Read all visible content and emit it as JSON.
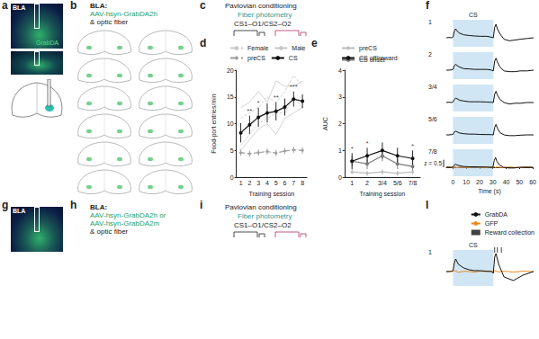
{
  "figure": {
    "a": {
      "letter": "a",
      "image_labels": [
        "BLA",
        "GrabDA"
      ]
    },
    "b": {
      "letter": "b",
      "lines": [
        "BLA:",
        "AAV-hsyn-GrabDA2h",
        "& optic fiber"
      ]
    },
    "c": {
      "letter": "c",
      "lines": [
        "Pavlovian conditioning",
        "Fiber photometry",
        "CS1–O1/CS2–O2"
      ]
    },
    "g": {
      "letter": "g",
      "image_labels": [
        "BLA"
      ]
    },
    "h": {
      "letter": "h",
      "lines": [
        "BLA:",
        "AAV-hsyn-GrabDA2h or",
        "AAV-hsyn-GrabDA2m",
        "& optic fiber"
      ]
    },
    "i": {
      "letter": "i",
      "lines": [
        "Pavlovian conditioning",
        "Fiber photometry",
        "CS1–O1/CS2–O2"
      ]
    }
  },
  "chart_data": [
    {
      "type": "line",
      "title": "d",
      "xlabel": "Training session",
      "ylabel": "Food-port entries/min",
      "categories": [
        "1",
        "2",
        "3",
        "4",
        "5",
        "6",
        "7",
        "8"
      ],
      "ylim": [
        0,
        20
      ],
      "yticks": [
        0,
        5,
        10,
        15,
        20
      ],
      "grid": false,
      "series": [
        {
          "name": "Female",
          "color": "#c8c8c8",
          "marker": "none",
          "line_style": "dashed",
          "values": [
            6,
            8,
            10,
            11,
            12,
            12,
            15,
            13
          ]
        },
        {
          "name": "Female",
          "color": "#c8c8c8",
          "marker": "none",
          "line_style": "dashed",
          "values": [
            11,
            12,
            13,
            15,
            14,
            16,
            19,
            17
          ]
        },
        {
          "name": "Male",
          "color": "#c8c8c8",
          "marker": "none",
          "line_style": "solid",
          "values": [
            5,
            7,
            9,
            10,
            8,
            11,
            12,
            13
          ]
        },
        {
          "name": "Male",
          "color": "#c8c8c8",
          "marker": "none",
          "line_style": "solid",
          "values": [
            13,
            14,
            16,
            14,
            18,
            17,
            17,
            18
          ]
        },
        {
          "name": "preCS",
          "color": "#9e9e9e",
          "marker": "diamond",
          "line_style": "dashed",
          "values": [
            4.6,
            4.4,
            4.6,
            4.8,
            4.5,
            4.9,
            5.1,
            5.0
          ],
          "errors": [
            0.6,
            0.6,
            0.6,
            0.6,
            0.6,
            0.6,
            0.6,
            0.6
          ]
        },
        {
          "name": "CS",
          "color": "#111111",
          "marker": "circle",
          "line_style": "solid",
          "values": [
            8.3,
            9.8,
            11.2,
            12.0,
            12.3,
            13.1,
            14.6,
            14.2
          ],
          "errors": [
            1.8,
            1.7,
            1.8,
            1.8,
            1.7,
            1.6,
            1.4,
            1.3
          ]
        }
      ],
      "annotations": [
        {
          "x": "2",
          "series": "CS",
          "text": "**"
        },
        {
          "x": "3",
          "series": "CS",
          "text": "*"
        },
        {
          "x": "5",
          "series": "CS",
          "text": "**"
        },
        {
          "x": "7",
          "series": "CS",
          "text": "***"
        }
      ]
    },
    {
      "type": "line",
      "title": "e",
      "xlabel": "Training session",
      "ylabel": "AUC",
      "categories": [
        "1",
        "2",
        "3/4",
        "5/6",
        "7/8"
      ],
      "ylim": [
        0,
        4
      ],
      "yticks": [
        0,
        1,
        2,
        3,
        4
      ],
      "grid": false,
      "series": [
        {
          "name": "preCS",
          "color": "#bdbdbd",
          "marker": "diamond",
          "line_style": "solid",
          "values": [
            0.2,
            0.15,
            0.2,
            0.15,
            0.2
          ],
          "errors": [
            0.1,
            0.1,
            0.1,
            0.1,
            0.1
          ]
        },
        {
          "name": "CS onset",
          "color": "#7a7a7a",
          "marker": "circle",
          "line_style": "solid",
          "values": [
            0.6,
            0.5,
            0.8,
            0.5,
            0.4
          ],
          "errors": [
            0.2,
            0.2,
            0.2,
            0.2,
            0.2
          ]
        },
        {
          "name": "CS off/reward",
          "color": "#111111",
          "marker": "circle",
          "line_style": "solid",
          "values": [
            0.6,
            0.8,
            1.0,
            0.8,
            0.7
          ],
          "errors": [
            0.3,
            0.3,
            0.3,
            0.3,
            0.3
          ]
        }
      ],
      "annotations": [
        {
          "x": "1",
          "series": "CS off/reward",
          "text": "*"
        },
        {
          "x": "2",
          "series": "CS off/reward",
          "text": "*"
        },
        {
          "x": "7/8",
          "series": "CS off/reward",
          "text": "*"
        }
      ]
    },
    {
      "type": "line",
      "title": "f",
      "xlabel": "Time (s)",
      "x": [
        -5,
        -3,
        -1,
        0,
        1,
        2,
        3,
        5,
        8,
        12,
        16,
        20,
        25,
        28,
        30,
        31,
        32,
        33,
        35,
        38,
        42,
        46,
        50,
        55,
        60
      ],
      "xlim": [
        -5,
        60
      ],
      "xticks": [
        0,
        10,
        20,
        30,
        40,
        50,
        60
      ],
      "ylim": [
        -0.6,
        1.2
      ],
      "shade": {
        "from": 0,
        "to": 30,
        "label": "CS"
      },
      "scale_bar": {
        "from": 0,
        "value": 0.5,
        "label": "z = 0.5"
      },
      "rows": [
        {
          "label": "1",
          "series": [
            {
              "color": "#111111",
              "values": [
                0,
                0.02,
                0,
                0.05,
                0.45,
                0.6,
                0.45,
                0.3,
                0.2,
                0.15,
                0.12,
                0.1,
                0.1,
                0.05,
                0,
                0.7,
                0.9,
                0.6,
                0.25,
                -0.1,
                -0.2,
                -0.15,
                -0.1,
                -0.05,
                0
              ]
            }
          ]
        },
        {
          "label": "2",
          "series": [
            {
              "color": "#111111",
              "values": [
                0,
                0,
                0.02,
                0.05,
                0.3,
                0.4,
                0.3,
                0.2,
                0.1,
                0.08,
                0.05,
                0.05,
                0.05,
                0.02,
                -0.05,
                0.6,
                0.8,
                0.55,
                0.2,
                -0.05,
                -0.1,
                -0.1,
                -0.05,
                -0.05,
                0
              ]
            }
          ]
        },
        {
          "label": "3/4",
          "series": [
            {
              "color": "#111111",
              "values": [
                0,
                0.02,
                0,
                0.03,
                0.2,
                0.3,
                0.25,
                0.15,
                0.1,
                0.05,
                0.05,
                0.05,
                0.03,
                0.02,
                0,
                0.55,
                0.75,
                0.5,
                0.2,
                0,
                -0.1,
                -0.05,
                -0.05,
                0,
                0
              ]
            }
          ]
        },
        {
          "label": "5/6",
          "series": [
            {
              "color": "#111111",
              "values": [
                0,
                0,
                0.02,
                0.03,
                0.2,
                0.25,
                0.2,
                0.12,
                0.08,
                0.05,
                0.05,
                0.03,
                0.02,
                0.02,
                0,
                0.5,
                0.7,
                0.45,
                0.15,
                0,
                -0.05,
                -0.05,
                -0.02,
                0,
                0
              ]
            }
          ]
        },
        {
          "label": "7/8",
          "series": [
            {
              "color": "#111111",
              "values": [
                0,
                0,
                0,
                0.02,
                0.15,
                0.2,
                0.15,
                0.1,
                0.05,
                0.03,
                0.03,
                0.02,
                0.02,
                0,
                0,
                0.45,
                0.65,
                0.4,
                0.15,
                0,
                -0.05,
                -0.05,
                0,
                0,
                0
              ]
            },
            {
              "color": "#e8891c",
              "values": [
                0,
                0.02,
                -0.02,
                0,
                0.03,
                0.02,
                -0.03,
                0.02,
                0,
                -0.02,
                0.03,
                0,
                -0.02,
                0.02,
                0,
                0.03,
                -0.02,
                0.02,
                0,
                -0.03,
                0.02,
                0,
                -0.02,
                0.02,
                0
              ]
            }
          ]
        }
      ]
    },
    {
      "type": "line",
      "title": "l",
      "x": [
        -5,
        -2,
        0,
        1,
        2,
        4,
        8,
        12,
        16,
        20,
        25,
        29,
        30,
        31,
        32,
        34,
        38,
        45,
        52,
        60
      ],
      "xlim": [
        -5,
        60
      ],
      "ylim": [
        -0.8,
        1.2
      ],
      "tick_labels": false,
      "shade": {
        "from": 0,
        "to": 30,
        "label": "CS"
      },
      "reward_collection": {
        "name": "Reward collection",
        "color": "#111111",
        "times": [
          31,
          33,
          36
        ]
      },
      "rows": [
        {
          "label": "1",
          "series": [
            {
              "name": "GrabDA",
              "color": "#111111",
              "values": [
                0,
                0,
                0.05,
                0.5,
                0.7,
                0.4,
                0.2,
                0.1,
                0.05,
                0.05,
                0.02,
                0,
                -0.1,
                0.8,
                1.0,
                0.4,
                -0.3,
                -0.5,
                -0.2,
                0
              ]
            },
            {
              "name": "GFP",
              "color": "#e8891c",
              "values": [
                0,
                0.02,
                0,
                0.05,
                0.03,
                -0.05,
                0.02,
                0,
                -0.03,
                0.02,
                0,
                0.02,
                -0.02,
                0.05,
                0.03,
                -0.02,
                0.02,
                -0.03,
                0.02,
                0
              ]
            }
          ]
        }
      ]
    }
  ]
}
